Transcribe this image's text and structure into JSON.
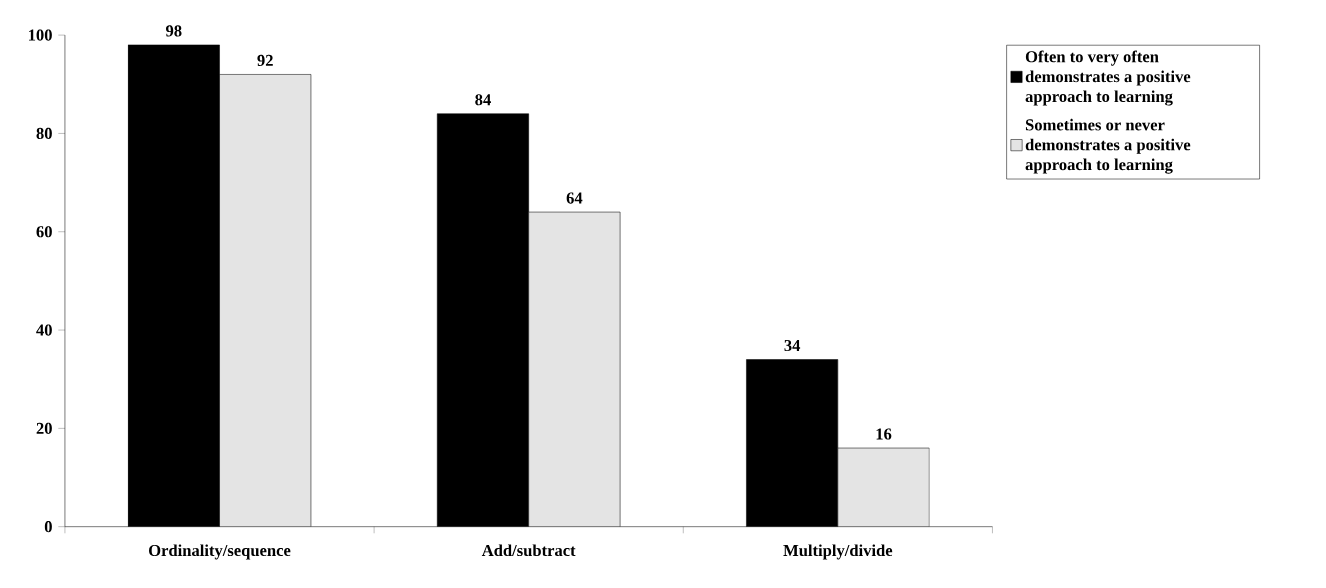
{
  "chart_data": {
    "type": "bar",
    "categories": [
      "Ordinality/sequence",
      "Add/subtract",
      "Multiply/divide"
    ],
    "series": [
      {
        "name": "Often to very often demonstrates a positive approach to learning",
        "color": "#000000",
        "values": [
          98,
          84,
          34
        ]
      },
      {
        "name": "Sometimes or never demonstrates a positive approach to learning",
        "color": "#e4e4e4",
        "values": [
          92,
          64,
          16
        ]
      }
    ],
    "ylim": [
      0,
      100
    ],
    "yticks": [
      0,
      20,
      40,
      60,
      80,
      100
    ],
    "data_labels": true,
    "legend": "top right"
  }
}
